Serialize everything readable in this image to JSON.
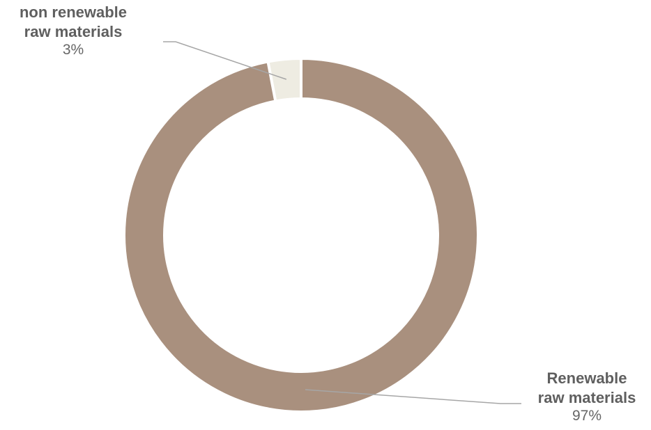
{
  "chart_data": {
    "type": "pie",
    "slices": [
      {
        "label_lines": [
          "non renewable",
          "raw materials"
        ],
        "value": 3,
        "value_text": "3%",
        "color": "#eeece2"
      },
      {
        "label_lines": [
          "Renewable",
          "raw materials"
        ],
        "value": 97,
        "value_text": "97%",
        "color": "#a9907e"
      }
    ],
    "leader_line_color": "#a6a6a6",
    "legend": "none"
  }
}
